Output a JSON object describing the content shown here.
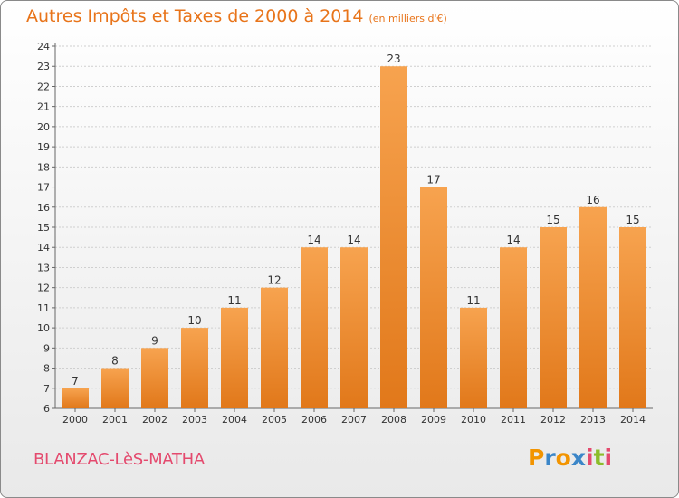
{
  "header": {
    "title": "Autres Impôts et Taxes de 2000 à 2014",
    "unit": "(en milliers d'€)"
  },
  "footer": {
    "commune": "BLANZAC-LèS-MATHA",
    "logo_letters": [
      "P",
      "r",
      "o",
      "x",
      "i",
      "t",
      "i"
    ]
  },
  "colors": {
    "title": "#e8741a",
    "bar_light": "#f7a34f",
    "bar_dark": "#e1781a",
    "commune": "#e44a6e"
  },
  "chart_data": {
    "type": "bar",
    "title": "Autres Impôts et Taxes de 2000 à 2014",
    "subtitle": "(en milliers d'€)",
    "categories": [
      "2000",
      "2001",
      "2002",
      "2003",
      "2004",
      "2005",
      "2006",
      "2007",
      "2008",
      "2009",
      "2010",
      "2011",
      "2012",
      "2013",
      "2014"
    ],
    "values": [
      7,
      8,
      9,
      10,
      11,
      12,
      14,
      14,
      23,
      17,
      11,
      14,
      15,
      16,
      15
    ],
    "ylim": [
      6,
      24
    ],
    "yticks": [
      6,
      7,
      8,
      9,
      10,
      11,
      12,
      13,
      14,
      15,
      16,
      17,
      18,
      19,
      20,
      21,
      22,
      23,
      24
    ],
    "grid": true,
    "data_labels": true
  }
}
